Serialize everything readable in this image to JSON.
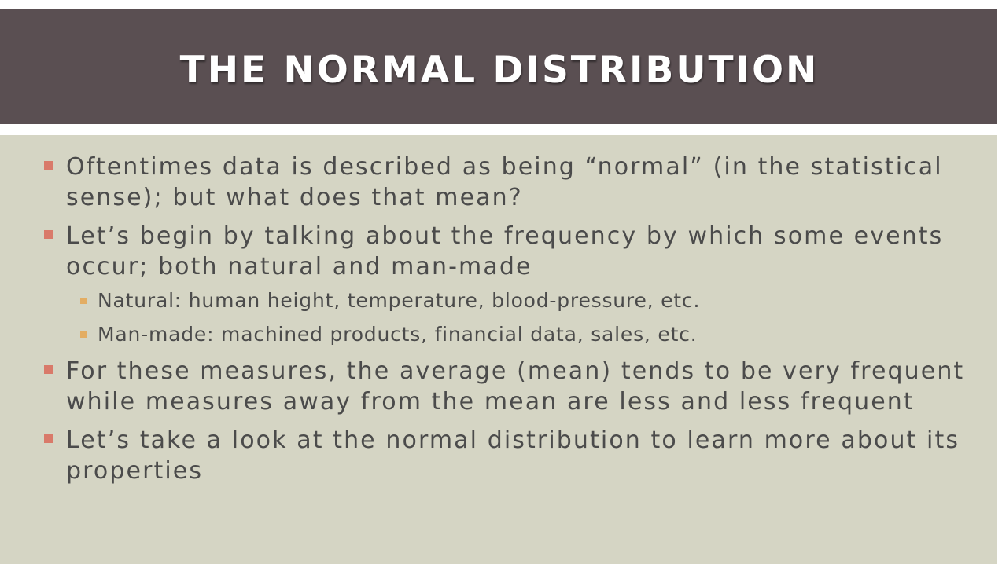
{
  "slide": {
    "title": "THE NORMAL DISTRIBUTION",
    "colors": {
      "title_band": "#5a4f52",
      "content_bg": "#d5d5c4",
      "bullet_marker": "#d97a6a",
      "sub_bullet_marker": "#e3ad63",
      "text": "#4b4b4b"
    },
    "bullets": [
      {
        "text": "Oftentimes data is described as being “normal” (in the statistical sense); but what does that mean?"
      },
      {
        "text": "Let’s begin by talking about the frequency by which some events occur; both natural and man-made",
        "sub_bullets": [
          "Natural: human height, temperature, blood-pressure, etc.",
          "Man-made: machined products, financial data, sales, etc."
        ]
      },
      {
        "text": "For these measures, the average (mean) tends to be very frequent while measures away from the mean are less and less frequent"
      },
      {
        "text": "Let’s take a look at the normal distribution to learn more about its properties"
      }
    ]
  }
}
